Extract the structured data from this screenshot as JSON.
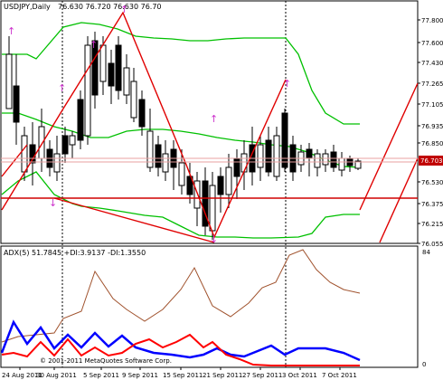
{
  "window": {
    "symbol_label": "USDJPY,Daily",
    "ohlc_text": "76.630 76.720 76.630 76.70"
  },
  "price_axis": {
    "ticks": [
      "77.800",
      "77.600",
      "77.430",
      "77.265",
      "77.105",
      "76.935",
      "76.850",
      "76.700",
      "76.530",
      "76.375",
      "76.215",
      "76.055"
    ],
    "current_price": "76.703",
    "current_price_bg": "#c00000"
  },
  "indicator": {
    "label": "ADX(5) 51.7845 +DI:3.9137 -DI:1.3550",
    "axis_top": "84",
    "axis_bottom": "0",
    "copyright": "© 2001-2011 MetaQuotes Software Corp."
  },
  "time_axis": {
    "labels": [
      "24 Aug 2011",
      "30 Aug 2011",
      "5 Sep 2011",
      "9 Sep 2011",
      "15 Sep 2011",
      "21 Sep 2011",
      "27 Sep 2011",
      "3 Oct 2011",
      "7 Oct 2011"
    ]
  },
  "colors": {
    "bollinger": "#00c000",
    "zigzag": "#e00000",
    "fractal": "#cc33cc",
    "adx_main": "#a0522d",
    "plus_di": "#0000ff",
    "minus_di": "#ff0000"
  }
}
